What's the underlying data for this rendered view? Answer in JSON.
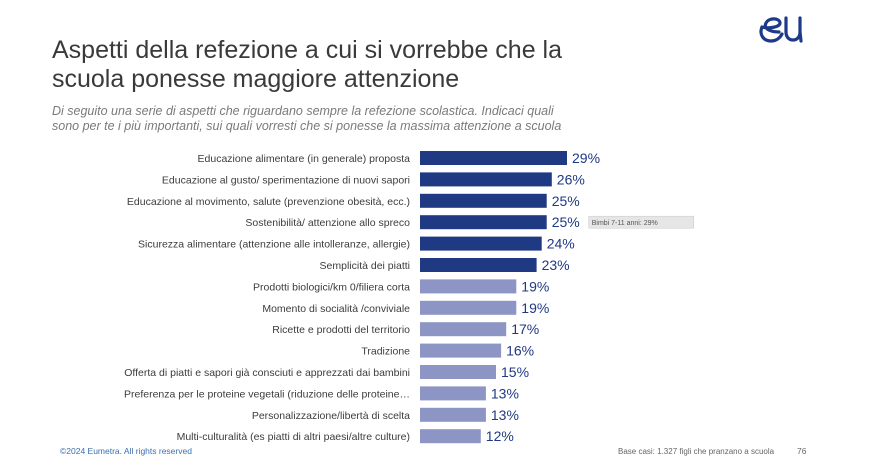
{
  "header": {
    "title_line1": "Aspetti della refezione a cui si vorrebbe che la",
    "title_line2": "scuola ponesse maggiore attenzione",
    "subtitle_line1": "Di seguito una serie di aspetti che riguardano sempre la refezione scolastica. Indicaci quali",
    "subtitle_line2": "sono per te i più importanti, sui quali vorresti che si ponesse la massima attenzione a scuola"
  },
  "logo": {
    "icon": "eumetra-eu-logo",
    "color": "#1d3a8a"
  },
  "chart_data": {
    "type": "bar",
    "orientation": "horizontal",
    "categories": [
      "Educazione alimentare (in generale) proposta",
      "Educazione al gusto/ sperimentazione di nuovi sapori",
      "Educazione al movimento, salute (prevenzione obesità, ecc.)",
      "Sostenibilità/ attenzione allo spreco",
      "Sicurezza alimentare (attenzione alle intolleranze, allergie)",
      "Semplicità dei piatti",
      "Prodotti biologici/km 0/filiera corta",
      "Momento di socialità /conviviale",
      "Ricette e prodotti del territorio",
      "Tradizione",
      "Offerta di piatti e sapori già consciuti e apprezzati dai bambini",
      "Preferenza per le proteine vegetali (riduzione delle proteine…",
      "Personalizzazione/libertà di scelta",
      "Multi-culturalità (es piatti di altri paesi/altre culture)"
    ],
    "values": [
      29,
      26,
      25,
      25,
      24,
      23,
      19,
      19,
      17,
      16,
      15,
      13,
      13,
      12
    ],
    "value_labels": [
      "29%",
      "26%",
      "25%",
      "25%",
      "24%",
      "23%",
      "19%",
      "19%",
      "17%",
      "16%",
      "15%",
      "13%",
      "13%",
      "12%"
    ],
    "xlim": [
      0,
      29
    ],
    "colors": {
      "dark": "#1f3983",
      "light": "#8c95c3"
    },
    "dark_count": 6,
    "annotations": [
      {
        "category_index": 3,
        "text": "Bimbi 7-11 anni: 29%"
      }
    ]
  },
  "footer": {
    "copyright": "©2024 Eumetra. All rights reserved",
    "base": "Base casi: 1.327 figli che pranzano a scuola",
    "page": "76"
  }
}
